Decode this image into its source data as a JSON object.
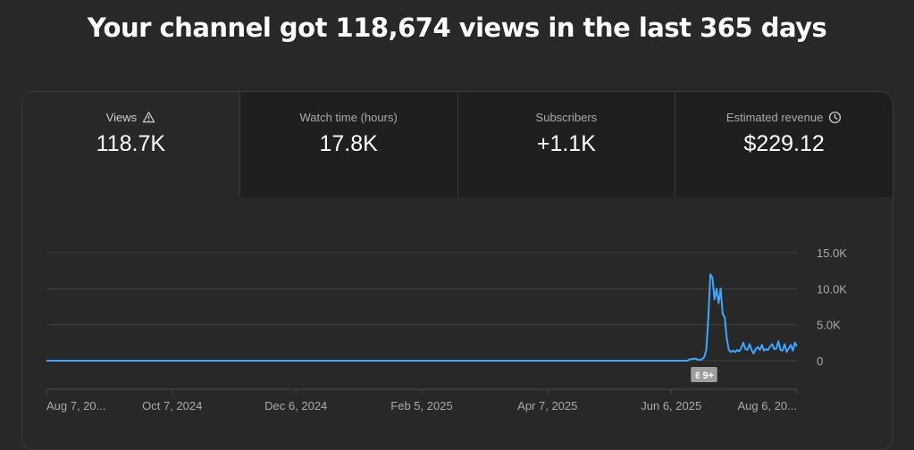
{
  "headline": "Your channel got 118,674 views in the last 365 days",
  "metrics": [
    {
      "label": "Views",
      "value": "118.7K",
      "icon": "warning-icon"
    },
    {
      "label": "Watch time (hours)",
      "value": "17.8K",
      "icon": ""
    },
    {
      "label": "Subscribers",
      "value": "+1.1K",
      "icon": ""
    },
    {
      "label": "Estimated revenue",
      "value": "$229.12",
      "icon": "clock-icon"
    }
  ],
  "colors": {
    "line": "#3ea6ff",
    "grid": "#3f3f3f",
    "background": "#282828"
  },
  "chart_data": {
    "type": "line",
    "title": "",
    "xlabel": "",
    "ylabel": "",
    "ylim": [
      0,
      15000
    ],
    "yticks": [
      {
        "value": 15000,
        "label": "15.0K"
      },
      {
        "value": 10000,
        "label": "10.0K"
      },
      {
        "value": 5000,
        "label": "5.0K"
      },
      {
        "value": 0,
        "label": "0"
      }
    ],
    "xlim": [
      "2024-08-07",
      "2025-08-06"
    ],
    "xticks": [
      {
        "date": "2024-08-07",
        "label": "Aug 7, 20..."
      },
      {
        "date": "2024-10-07",
        "label": "Oct 7, 2024"
      },
      {
        "date": "2024-12-06",
        "label": "Dec 6, 2024"
      },
      {
        "date": "2025-02-05",
        "label": "Feb 5, 2025"
      },
      {
        "date": "2025-04-07",
        "label": "Apr 7, 2025"
      },
      {
        "date": "2025-06-06",
        "label": "Jun 6, 2025"
      },
      {
        "date": "2025-08-06",
        "label": "Aug 6, 20..."
      }
    ],
    "markers": [
      {
        "date": "2025-06-19",
        "label": "6"
      },
      {
        "date": "2025-06-24",
        "label": "9+"
      }
    ],
    "series": [
      {
        "points": [
          [
            "2024-08-07",
            0
          ],
          [
            "2025-06-14",
            0
          ],
          [
            "2025-06-15",
            200
          ],
          [
            "2025-06-18",
            300
          ],
          [
            "2025-06-19",
            100
          ],
          [
            "2025-06-21",
            200
          ],
          [
            "2025-06-22",
            500
          ],
          [
            "2025-06-23",
            1500
          ],
          [
            "2025-06-24",
            6000
          ],
          [
            "2025-06-25",
            12000
          ],
          [
            "2025-06-26",
            11500
          ],
          [
            "2025-06-27",
            8500
          ],
          [
            "2025-06-28",
            10000
          ],
          [
            "2025-06-29",
            8000
          ],
          [
            "2025-06-30",
            10000
          ],
          [
            "2025-07-01",
            6500
          ],
          [
            "2025-07-02",
            6000
          ],
          [
            "2025-07-03",
            3000
          ],
          [
            "2025-07-04",
            1500
          ],
          [
            "2025-07-05",
            1200
          ],
          [
            "2025-07-06",
            1400
          ],
          [
            "2025-07-07",
            1200
          ],
          [
            "2025-07-08",
            1500
          ],
          [
            "2025-07-09",
            1300
          ],
          [
            "2025-07-10",
            1800
          ],
          [
            "2025-07-11",
            2500
          ],
          [
            "2025-07-12",
            1600
          ],
          [
            "2025-07-13",
            1500
          ],
          [
            "2025-07-14",
            2300
          ],
          [
            "2025-07-15",
            1500
          ],
          [
            "2025-07-16",
            1000
          ],
          [
            "2025-07-17",
            1600
          ],
          [
            "2025-07-18",
            1900
          ],
          [
            "2025-07-19",
            1500
          ],
          [
            "2025-07-20",
            2200
          ],
          [
            "2025-07-21",
            1400
          ],
          [
            "2025-07-22",
            1600
          ],
          [
            "2025-07-23",
            1500
          ],
          [
            "2025-07-24",
            2000
          ],
          [
            "2025-07-25",
            2300
          ],
          [
            "2025-07-26",
            1600
          ],
          [
            "2025-07-27",
            1700
          ],
          [
            "2025-07-28",
            2700
          ],
          [
            "2025-07-29",
            1500
          ],
          [
            "2025-07-30",
            1400
          ],
          [
            "2025-07-31",
            2300
          ],
          [
            "2025-08-01",
            1200
          ],
          [
            "2025-08-02",
            1700
          ],
          [
            "2025-08-03",
            2200
          ],
          [
            "2025-08-04",
            1400
          ],
          [
            "2025-08-05",
            2500
          ],
          [
            "2025-08-06",
            2000
          ]
        ]
      }
    ]
  }
}
